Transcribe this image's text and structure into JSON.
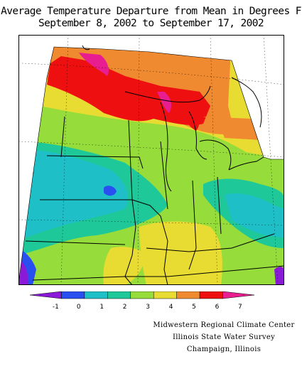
{
  "title_line1": "Average Temperature Departure from Mean in Degrees F",
  "title_line2": "September 8, 2002 to September 17, 2002",
  "legend": {
    "colors": [
      "#8a1ad8",
      "#2a4ff0",
      "#1fbfc8",
      "#1ec898",
      "#96dc3a",
      "#e8dc32",
      "#f08a30",
      "#ee1010",
      "#e81e90"
    ],
    "ticks": [
      "-1",
      "0",
      "1",
      "2",
      "3",
      "4",
      "5",
      "6",
      "7"
    ]
  },
  "credits": {
    "line1": "Midwestern Regional Climate Center",
    "line2": "Illinois State Water Survey",
    "line3": "Champaign, Illinois"
  }
}
